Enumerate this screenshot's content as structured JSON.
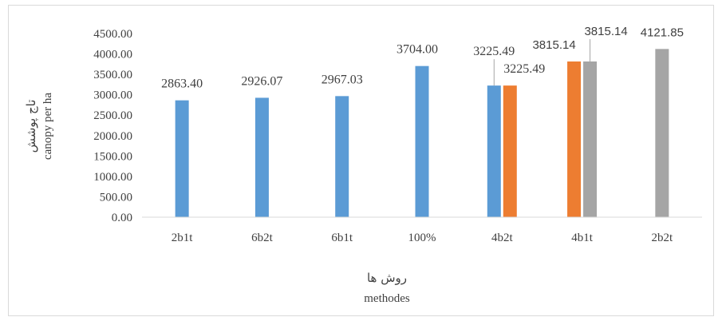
{
  "chart_data": {
    "type": "bar",
    "categories": [
      "2b1t",
      "6b2t",
      "6b1t",
      "100%",
      "4b2t",
      "4b1t",
      "2b2t"
    ],
    "series": [
      {
        "color": "#5b9bd5",
        "values": [
          2863.4,
          2926.07,
          2967.03,
          3704.0,
          3225.49,
          null,
          null
        ]
      },
      {
        "color": "#ed7d31",
        "values": [
          null,
          null,
          null,
          null,
          3225.49,
          3815.14,
          null
        ]
      },
      {
        "color": "#a5a5a5",
        "values": [
          null,
          null,
          null,
          null,
          null,
          3815.14,
          4121.85
        ]
      }
    ],
    "data_labels": {
      "s0": [
        "2863.40",
        "2926.07",
        "2967.03",
        "3704.00",
        "3225.49",
        "",
        ""
      ],
      "s1": [
        "",
        "",
        "",
        "",
        "3225.49",
        "3815.14",
        ""
      ],
      "s2": [
        "",
        "",
        "",
        "",
        "",
        "3815.14",
        "4121.85"
      ]
    },
    "ylim": [
      0,
      4500
    ],
    "yticks": [
      0,
      500,
      1000,
      1500,
      2000,
      2500,
      3000,
      3500,
      4000,
      4500
    ],
    "ytick_labels": [
      "0.00",
      "500.00",
      "1000.00",
      "1500.00",
      "2000.00",
      "2500.00",
      "3000.00",
      "3500.00",
      "4000.00",
      "4500.00"
    ],
    "xlabel": "روش ها",
    "xlabel_en": "methodes",
    "ylabel": "تاج پوشش",
    "ylabel_en": "canopy per ha",
    "grid": false,
    "legend": "none"
  }
}
